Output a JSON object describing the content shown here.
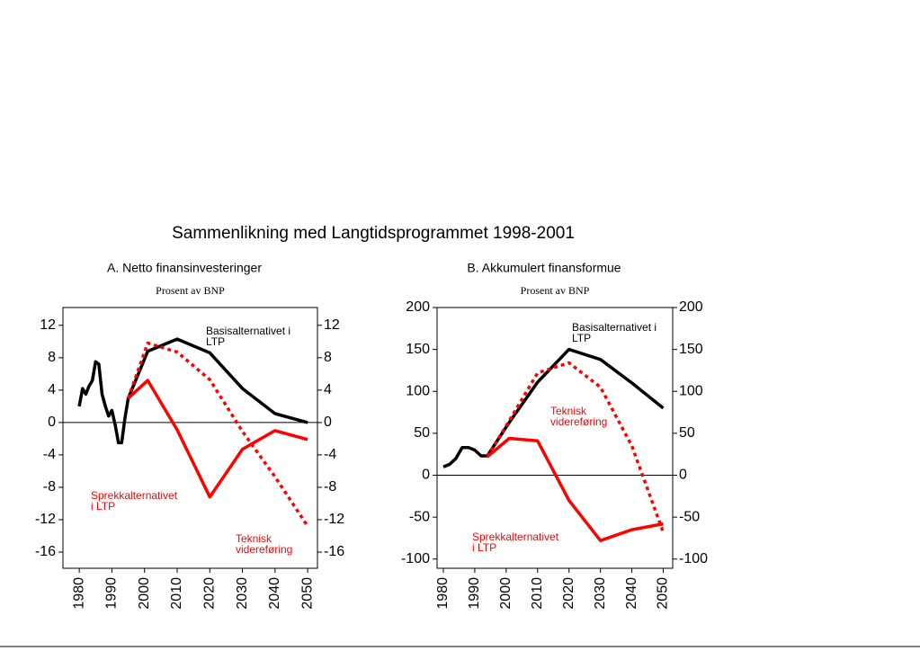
{
  "title": "Sammenlikning med Langtidsprogrammet 1998-2001",
  "chart_data": [
    {
      "type": "line",
      "title": "A. Netto finansinvesteringer",
      "ylabel": "Prosent av BNP",
      "x": [
        1980,
        1981,
        1982,
        1983,
        1984,
        1985,
        1986,
        1987,
        1988,
        1989,
        1990,
        1991,
        1992,
        1993,
        1994,
        1995,
        2001,
        2010,
        2020,
        2030,
        2040,
        2050
      ],
      "series": [
        {
          "name": "Basisalternativet i LTP",
          "color": "#000000",
          "style": "solid",
          "values": [
            2,
            4.2,
            3.5,
            4.5,
            5.2,
            7.5,
            7.2,
            3.5,
            2,
            0.8,
            1.5,
            -0.3,
            -2.5,
            -2.5,
            0.5,
            3,
            8.8,
            10.3,
            8.6,
            4.2,
            1.1,
            0
          ]
        },
        {
          "name": "Sprekkalternativet i LTP",
          "color": "#ff0000",
          "style": "solid",
          "values": [
            null,
            null,
            null,
            null,
            null,
            null,
            null,
            null,
            null,
            null,
            null,
            null,
            null,
            null,
            null,
            3,
            5.2,
            -0.9,
            -9.2,
            -3.3,
            -1,
            -2.1
          ]
        },
        {
          "name": "Teknisk videreføring",
          "color": "#ff0000",
          "style": "dotted",
          "values": [
            null,
            null,
            null,
            null,
            null,
            null,
            null,
            null,
            null,
            null,
            null,
            null,
            null,
            null,
            null,
            3,
            9.8,
            8.7,
            5.3,
            -1.1,
            -6.7,
            -12.8
          ]
        }
      ],
      "xlim": [
        1975,
        2053
      ],
      "xticks": [
        1980,
        1990,
        2000,
        2010,
        2020,
        2030,
        2040,
        2050
      ],
      "ylim": [
        -18,
        14.2
      ],
      "yticks": [
        -16,
        -12,
        -8,
        -4,
        0,
        4,
        8,
        12
      ],
      "y2lim": [
        -18,
        14.2
      ],
      "y2ticks": [
        -16,
        -12,
        -8,
        -4,
        0,
        4,
        8,
        12
      ]
    },
    {
      "type": "line",
      "title": "B. Akkumulert finansformue",
      "ylabel": "Prosent av BNP",
      "x": [
        1980,
        1982,
        1984,
        1986,
        1988,
        1990,
        1992,
        1994,
        2001,
        2010,
        2020,
        2030,
        2040,
        2050
      ],
      "series": [
        {
          "name": "Basisalternativet i LTP",
          "color": "#000000",
          "style": "solid",
          "values": [
            10,
            13,
            20,
            33,
            33,
            30,
            23,
            23,
            63,
            111,
            150,
            138,
            110,
            80
          ]
        },
        {
          "name": "Teknisk videreføring",
          "color": "#ff0000",
          "style": "dotted",
          "values": [
            null,
            null,
            null,
            null,
            null,
            null,
            null,
            22,
            65,
            122,
            134,
            105,
            35,
            -68
          ]
        },
        {
          "name": "Sprekkalternativet i LTP",
          "color": "#ff0000",
          "style": "solid",
          "values": [
            null,
            null,
            null,
            null,
            null,
            null,
            null,
            22,
            44,
            41,
            -30,
            -78,
            -65,
            -58
          ]
        }
      ],
      "xlim": [
        1978,
        2053
      ],
      "xticks": [
        1980,
        1990,
        2000,
        2010,
        2020,
        2030,
        2040,
        2050
      ],
      "ylim": [
        -111,
        200
      ],
      "yticks": [
        -100,
        -50,
        0,
        50,
        100,
        150,
        200
      ],
      "y2lim": [
        -111,
        200
      ],
      "y2ticks": [
        -100,
        -50,
        0,
        50,
        100,
        150,
        200
      ]
    }
  ]
}
